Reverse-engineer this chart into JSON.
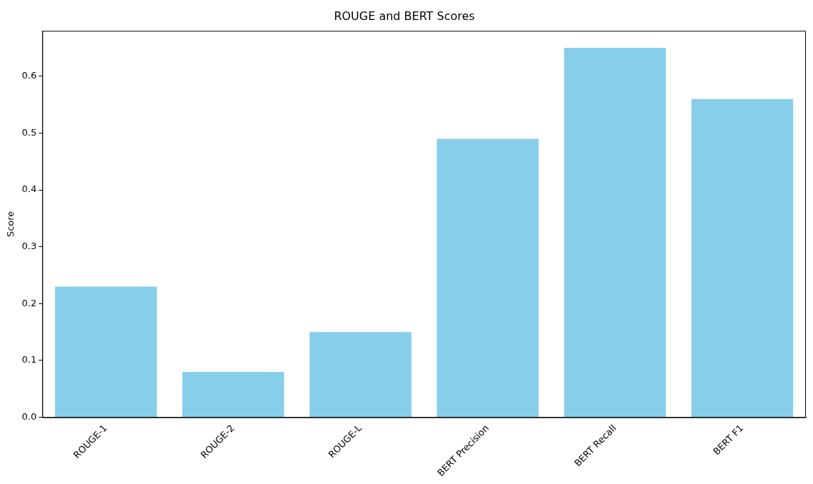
{
  "chart_data": {
    "type": "bar",
    "title": "ROUGE and BERT Scores",
    "ylabel": "Score",
    "categories": [
      "ROUGE-1",
      "ROUGE-2",
      "ROUGE-L",
      "BERT Precision",
      "BERT Recall",
      "BERT F1"
    ],
    "values": [
      0.23,
      0.08,
      0.15,
      0.49,
      0.65,
      0.56
    ],
    "color": "#87ceeb",
    "ylim": [
      0,
      0.68
    ],
    "yticks": [
      {
        "value": 0,
        "label": "0.0"
      },
      0.1,
      0.2,
      0.3,
      0.4,
      0.5,
      0.6
    ],
    "grid": false,
    "legend": false
  }
}
